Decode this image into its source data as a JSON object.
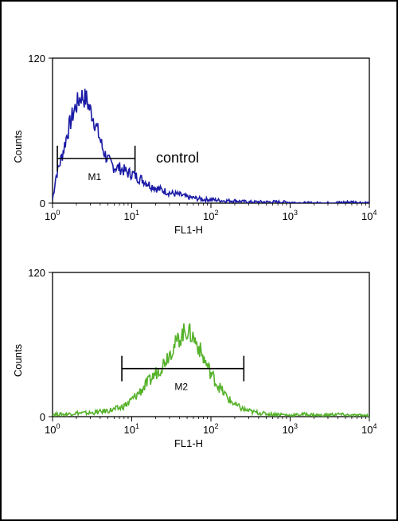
{
  "chart_data": [
    {
      "type": "line",
      "title": "",
      "xlabel": "FL1-H",
      "ylabel": "Counts",
      "x_scale": "log",
      "xlim": [
        1,
        10000
      ],
      "ylim": [
        0,
        120
      ],
      "y_tick_labels": [
        "0",
        "120"
      ],
      "x_tick_labels": [
        {
          "base": "10",
          "exp": "0"
        },
        {
          "base": "10",
          "exp": "1"
        },
        {
          "base": "10",
          "exp": "2"
        },
        {
          "base": "10",
          "exp": "3"
        },
        {
          "base": "10",
          "exp": "4"
        }
      ],
      "annotation": "control",
      "gate": {
        "label": "M1",
        "x_start": 1.15,
        "x_end": 11,
        "y": 37
      },
      "series": [
        {
          "color": "#1a1aa6",
          "x": [
            1,
            1.05,
            1.1,
            1.2,
            1.35,
            1.5,
            1.7,
            1.9,
            2.1,
            2.3,
            2.5,
            2.7,
            2.9,
            3.2,
            3.5,
            3.9,
            4.3,
            4.8,
            5.3,
            6,
            7,
            8,
            9,
            10.5,
            12,
            14,
            17,
            21,
            26,
            32,
            40,
            50,
            65,
            80,
            100,
            140,
            200,
            300,
            500,
            800,
            1500,
            3000,
            6000,
            10000
          ],
          "y": [
            3,
            12,
            22,
            30,
            42,
            55,
            68,
            78,
            84,
            89,
            87,
            86,
            79,
            73,
            65,
            55,
            45,
            38,
            33,
            30,
            29,
            27,
            25,
            24,
            21,
            19,
            15,
            12,
            10,
            8,
            7,
            5,
            4,
            3,
            3,
            2,
            2,
            1,
            1,
            1,
            0,
            0,
            1,
            0
          ]
        }
      ]
    },
    {
      "type": "line",
      "title": "",
      "xlabel": "FL1-H",
      "ylabel": "Counts",
      "x_scale": "log",
      "xlim": [
        1,
        10000
      ],
      "ylim": [
        0,
        120
      ],
      "y_tick_labels": [
        "0",
        "120"
      ],
      "x_tick_labels": [
        {
          "base": "10",
          "exp": "0"
        },
        {
          "base": "10",
          "exp": "1"
        },
        {
          "base": "10",
          "exp": "2"
        },
        {
          "base": "10",
          "exp": "3"
        },
        {
          "base": "10",
          "exp": "4"
        }
      ],
      "gate": {
        "label": "M2",
        "x_start": 7.5,
        "x_end": 260,
        "y": 40
      },
      "series": [
        {
          "color": "#55b22a",
          "x": [
            1,
            1.5,
            2,
            3,
            4,
            5,
            6,
            7,
            8,
            9,
            10,
            12,
            14,
            17,
            20,
            24,
            28,
            33,
            38,
            43,
            48,
            53,
            60,
            70,
            80,
            95,
            115,
            140,
            170,
            210,
            260,
            330,
            420,
            550,
            750,
            1000,
            1500,
            2500,
            4000,
            6000,
            10000
          ],
          "y": [
            2,
            2,
            3,
            3,
            4,
            5,
            6,
            7,
            9,
            11,
            14,
            19,
            24,
            30,
            36,
            42,
            50,
            57,
            63,
            68,
            72,
            70,
            66,
            58,
            49,
            39,
            29,
            21,
            14,
            9,
            6,
            4,
            3,
            2,
            2,
            1,
            2,
            1,
            2,
            1,
            1
          ]
        }
      ]
    }
  ]
}
